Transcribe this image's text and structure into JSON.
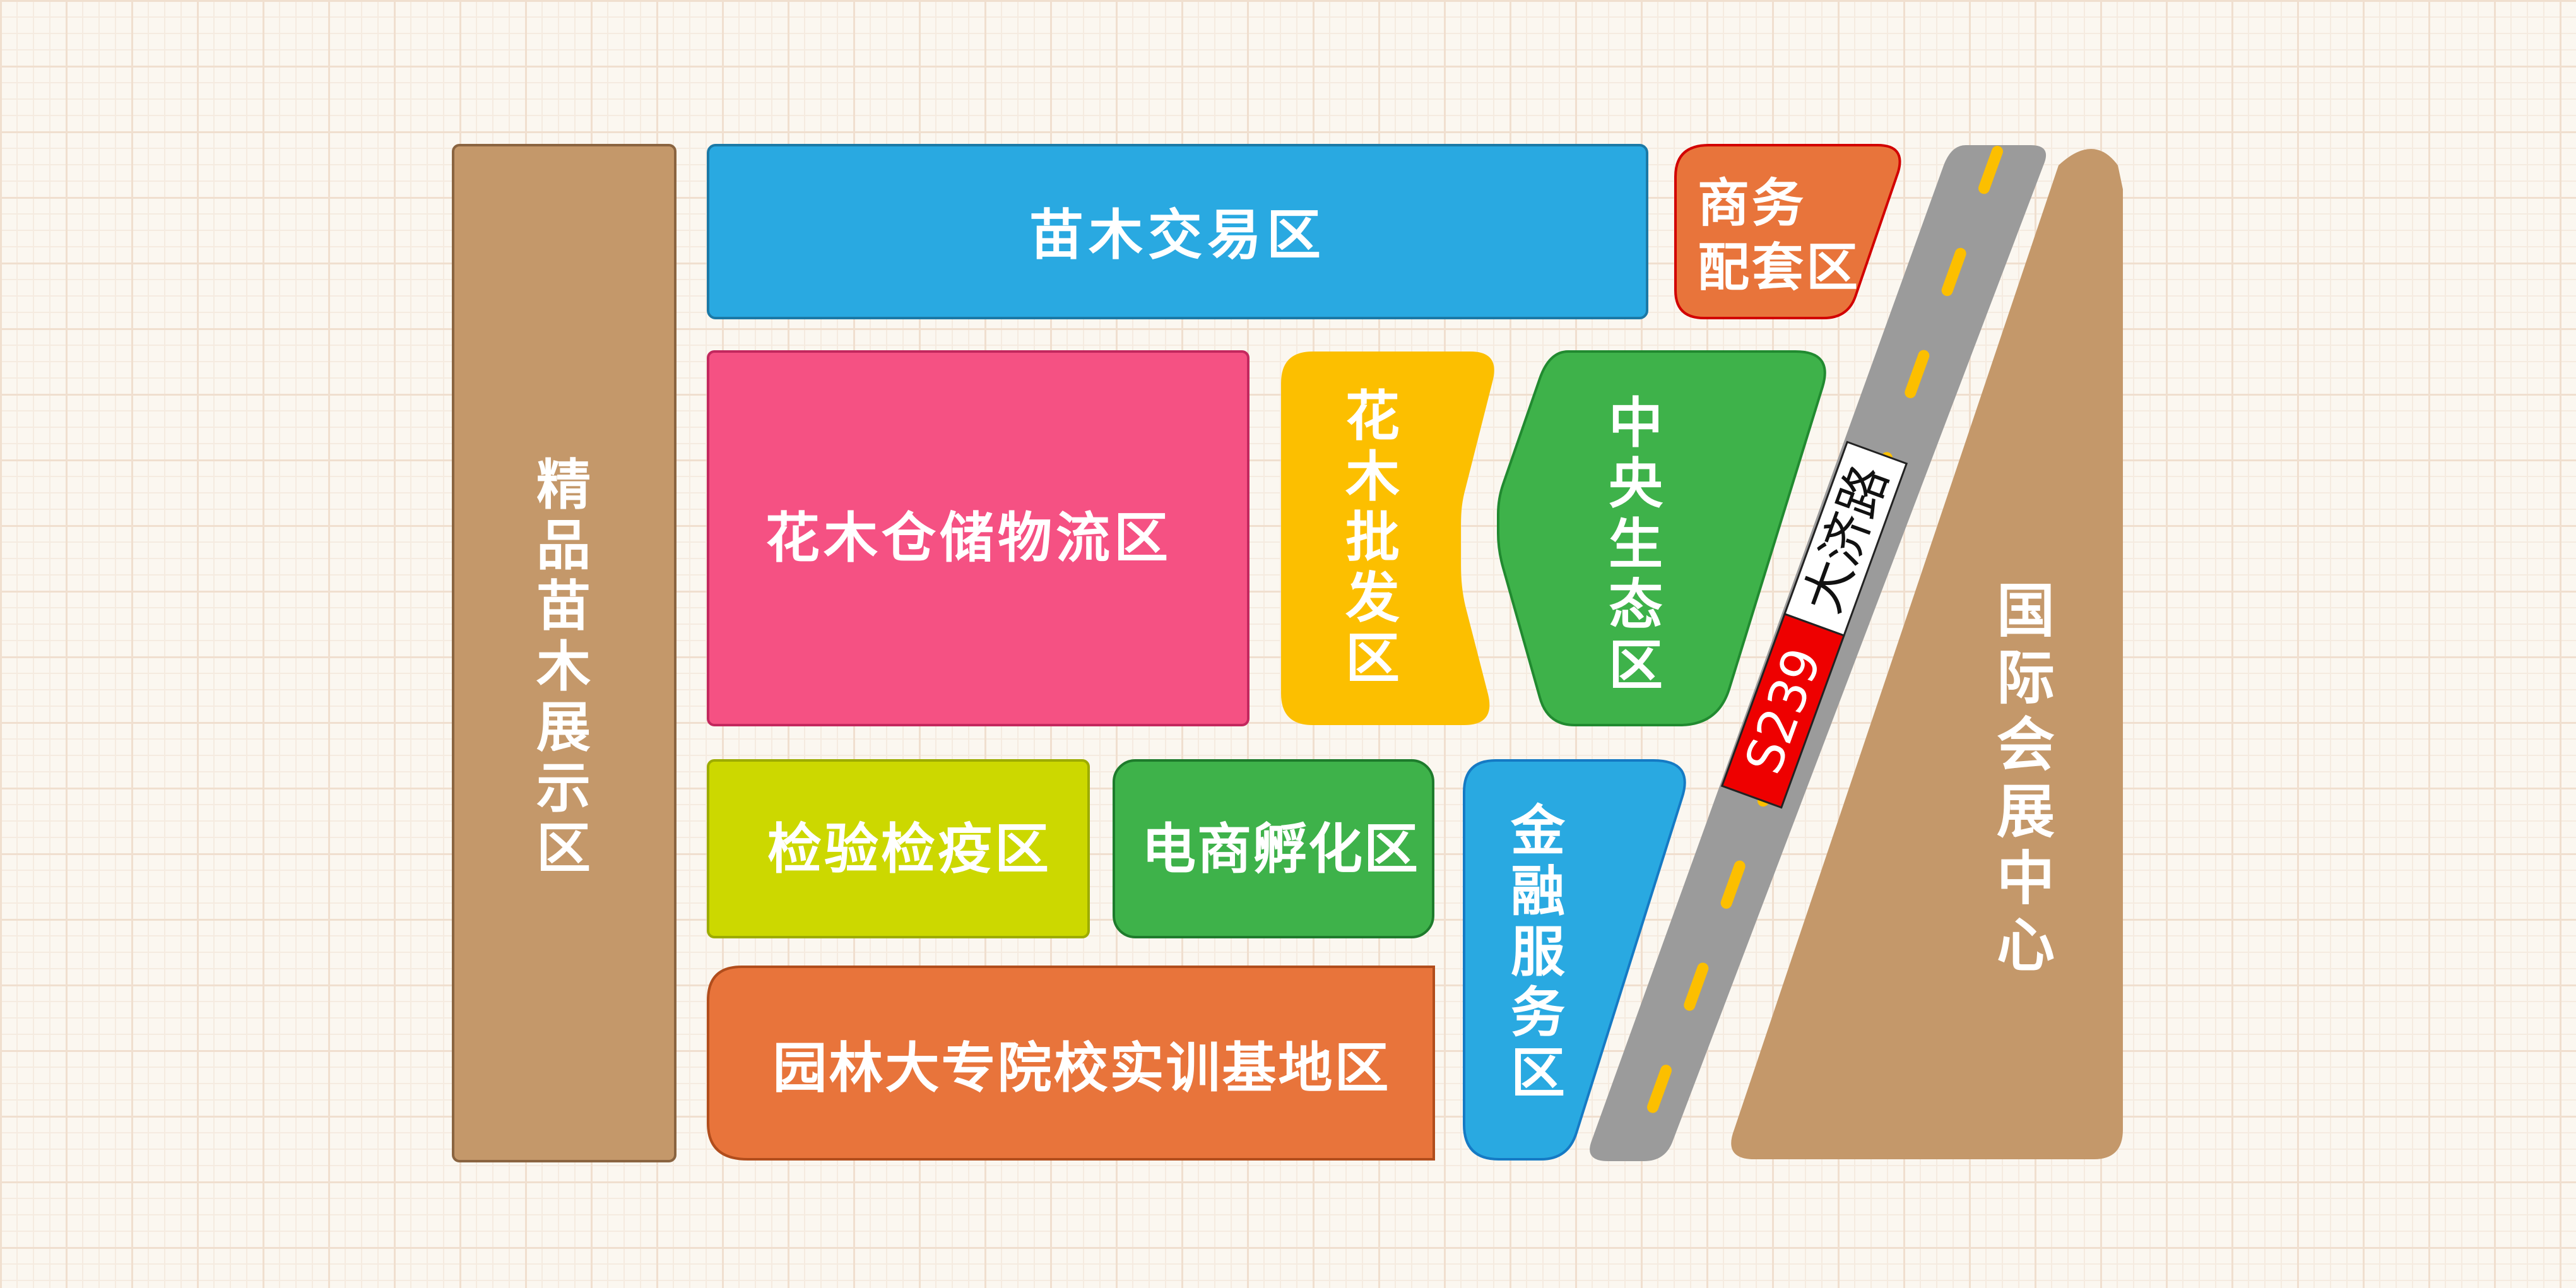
{
  "colors": {
    "brown": "#c4986a",
    "blue": "#29a9e1",
    "pink": "#f55183",
    "yellow": "#fcbf00",
    "green": "#3eb24a",
    "lime": "#ccd800",
    "orange": "#e8743b",
    "road": "#9b9b9b",
    "road_dash": "#fcbf00",
    "sign_red": "#ee0000",
    "sign_white": "#ffffff"
  },
  "zones": {
    "nursery_display": "精品苗木展示区",
    "nursery_trading": "苗木交易区",
    "business_support_line1": "商务",
    "business_support_line2": "配套区",
    "warehouse_logistics": "花木仓储物流区",
    "flower_wholesale": "花木批发区",
    "central_ecology": "中央生态区",
    "inspection_quarantine": "检验检疫区",
    "ecommerce_incubation": "电商孵化区",
    "finance_services": "金融服务区",
    "training_base": "园林大专院校实训基地区",
    "convention_center": "国际会展中心"
  },
  "road": {
    "code": "S239",
    "name": "大济路"
  }
}
